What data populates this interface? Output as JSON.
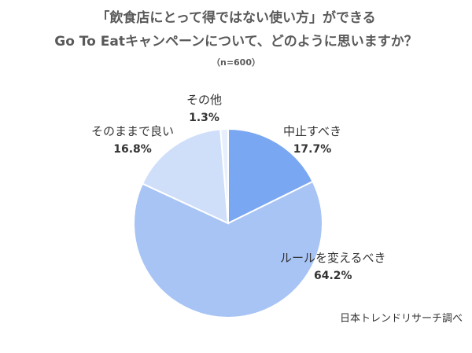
{
  "chart_data": {
    "type": "pie",
    "title_line1": "「飲食店にとって得ではない使い方」ができる",
    "title_line2": "Go To Eatキャンペーンについて、どのように思いますか？",
    "subtitle": "（n=600）",
    "source": "日本トレンドリサーチ調べ",
    "slices": [
      {
        "label": "中止すべき",
        "value": 17.7,
        "value_label": "17.7%",
        "color": "#7aa7f2"
      },
      {
        "label": "ルールを変えるべき",
        "value": 64.2,
        "value_label": "64.2%",
        "color": "#a7c4f5"
      },
      {
        "label": "そのままで良い",
        "value": 16.8,
        "value_label": "16.8%",
        "color": "#cfdff9"
      },
      {
        "label": "その他",
        "value": 1.3,
        "value_label": "1.3%",
        "color": "#e8effc"
      }
    ]
  }
}
